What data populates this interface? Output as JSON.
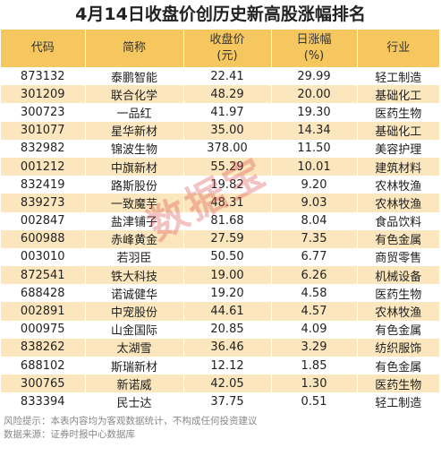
{
  "title": "4月14日收盘价创历史新高股涨幅排名",
  "headers": {
    "code": "代码",
    "name": "简称",
    "price_line1": "收盘价",
    "price_line2": "(元)",
    "change_line1": "日涨幅",
    "change_line2": "(%)",
    "industry": "行业"
  },
  "rows": [
    {
      "code": "873132",
      "name": "泰鹏智能",
      "price": "22.41",
      "change": "29.99",
      "industry": "轻工制造"
    },
    {
      "code": "301209",
      "name": "联合化学",
      "price": "48.29",
      "change": "20.00",
      "industry": "基础化工"
    },
    {
      "code": "300723",
      "name": "一品红",
      "price": "41.97",
      "change": "19.30",
      "industry": "医药生物"
    },
    {
      "code": "301077",
      "name": "星华新材",
      "price": "35.00",
      "change": "14.34",
      "industry": "基础化工"
    },
    {
      "code": "832982",
      "name": "锦波生物",
      "price": "378.00",
      "change": "11.50",
      "industry": "美容护理"
    },
    {
      "code": "001212",
      "name": "中旗新材",
      "price": "55.29",
      "change": "10.01",
      "industry": "建筑材料"
    },
    {
      "code": "832419",
      "name": "路斯股份",
      "price": "19.82",
      "change": "9.20",
      "industry": "农林牧渔"
    },
    {
      "code": "839273",
      "name": "一致魔芋",
      "price": "48.31",
      "change": "9.03",
      "industry": "农林牧渔"
    },
    {
      "code": "002847",
      "name": "盐津铺子",
      "price": "81.68",
      "change": "8.04",
      "industry": "食品饮料"
    },
    {
      "code": "600988",
      "name": "赤峰黄金",
      "price": "27.59",
      "change": "7.35",
      "industry": "有色金属"
    },
    {
      "code": "003010",
      "name": "若羽臣",
      "price": "50.50",
      "change": "6.77",
      "industry": "商贸零售"
    },
    {
      "code": "872541",
      "name": "铁大科技",
      "price": "19.00",
      "change": "6.26",
      "industry": "机械设备"
    },
    {
      "code": "688428",
      "name": "诺诚健华",
      "price": "19.20",
      "change": "4.58",
      "industry": "医药生物"
    },
    {
      "code": "002891",
      "name": "中宠股份",
      "price": "44.61",
      "change": "4.57",
      "industry": "农林牧渔"
    },
    {
      "code": "000975",
      "name": "山金国际",
      "price": "20.85",
      "change": "4.09",
      "industry": "有色金属"
    },
    {
      "code": "838262",
      "name": "太湖雪",
      "price": "36.46",
      "change": "3.29",
      "industry": "纺织服饰"
    },
    {
      "code": "688102",
      "name": "斯瑞新材",
      "price": "12.12",
      "change": "1.85",
      "industry": "有色金属"
    },
    {
      "code": "300765",
      "name": "新诺威",
      "price": "42.05",
      "change": "1.30",
      "industry": "医药生物"
    },
    {
      "code": "833394",
      "name": "民士达",
      "price": "37.75",
      "change": "0.51",
      "industry": "轻工制造"
    }
  ],
  "footer": {
    "risk": "风险提示：本表内容均为客观数据统计，不构成任何投资建议",
    "source": "数据来源：证券时报中心数据库"
  },
  "watermark": "数据宝"
}
